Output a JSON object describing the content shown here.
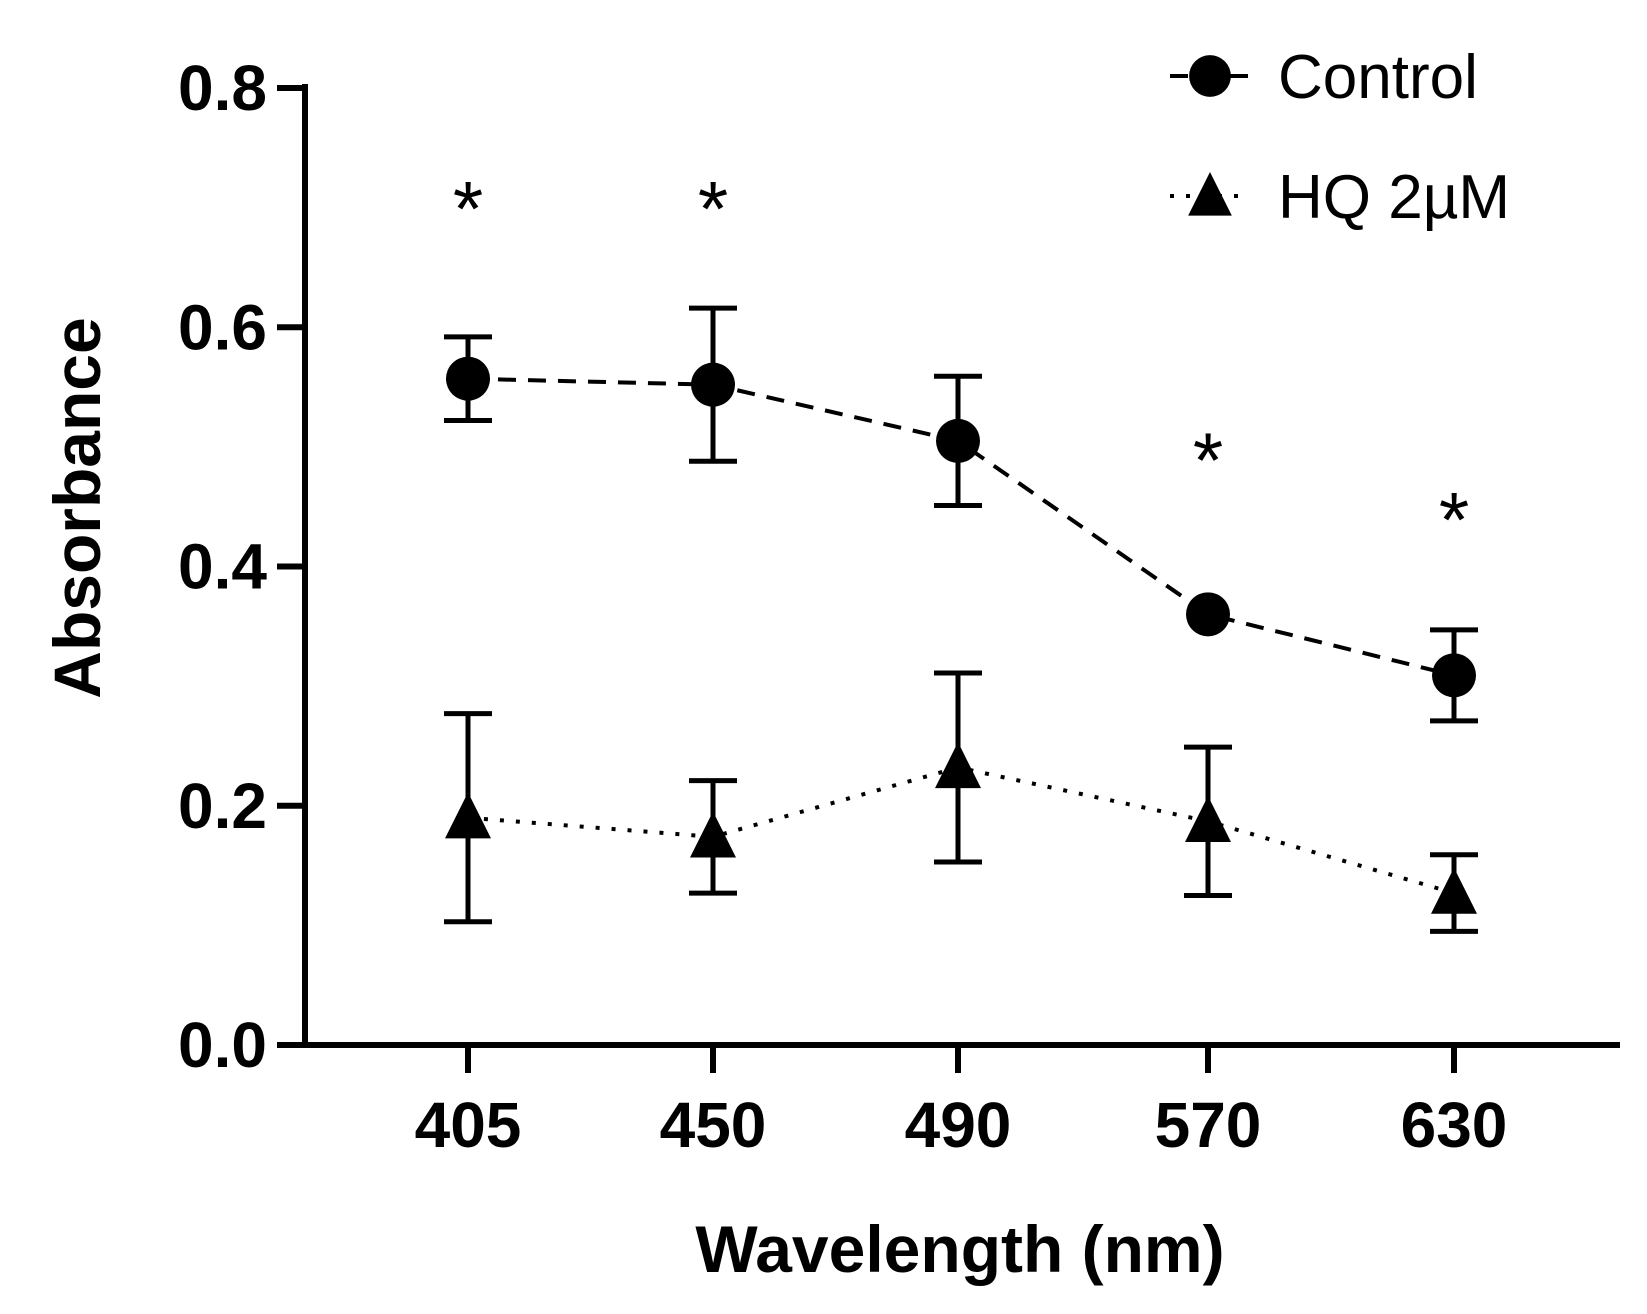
{
  "chart_data": {
    "type": "line",
    "xlabel": "Wavelength (nm)",
    "ylabel": "Absorbance",
    "categories": [
      "405",
      "450",
      "490",
      "570",
      "630"
    ],
    "ylim": [
      0,
      0.8
    ],
    "yticks": [
      "0.0",
      "0.2",
      "0.4",
      "0.6",
      "0.8"
    ],
    "grid": false,
    "legend": "top-right",
    "series": [
      {
        "name": "Control",
        "marker": "circle",
        "line_style": "dashed",
        "color": "#000000",
        "values": [
          0.557,
          0.552,
          0.505,
          0.36,
          0.309
        ],
        "error": [
          0.035,
          0.064,
          0.054,
          0.0,
          0.038
        ]
      },
      {
        "name": "HQ 2µM",
        "marker": "triangle",
        "line_style": "dotted",
        "color": "#000000",
        "values": [
          0.19,
          0.174,
          0.232,
          0.187,
          0.127
        ],
        "error": [
          0.087,
          0.047,
          0.079,
          0.062,
          0.032
        ]
      }
    ],
    "annotations": [
      {
        "category": "405",
        "text": "*",
        "y": 0.71
      },
      {
        "category": "450",
        "text": "*",
        "y": 0.71
      },
      {
        "category": "570",
        "text": "*",
        "y": 0.5
      },
      {
        "category": "630",
        "text": "*",
        "y": 0.45
      }
    ]
  }
}
